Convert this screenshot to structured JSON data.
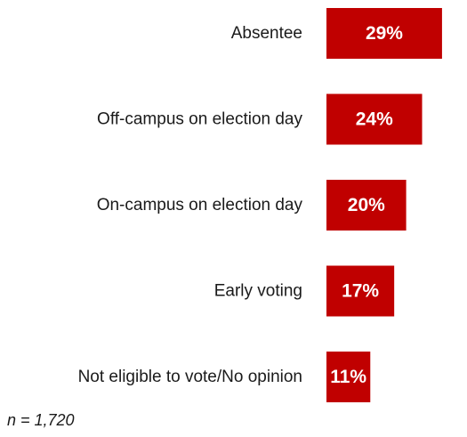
{
  "chart_data": {
    "type": "bar",
    "orientation": "horizontal",
    "categories": [
      "Absentee",
      "Off-campus on election day",
      "On-campus on election day",
      "Early voting",
      "Not eligible to vote/No opinion"
    ],
    "values": [
      29,
      24,
      20,
      17,
      11
    ],
    "value_labels": [
      "29%",
      "24%",
      "20%",
      "17%",
      "11%"
    ],
    "unit": "%",
    "title": "",
    "xlabel": "",
    "ylabel": "",
    "grid": false,
    "legend": "none",
    "bar_color": "#c00000"
  },
  "note": "n = 1,720"
}
